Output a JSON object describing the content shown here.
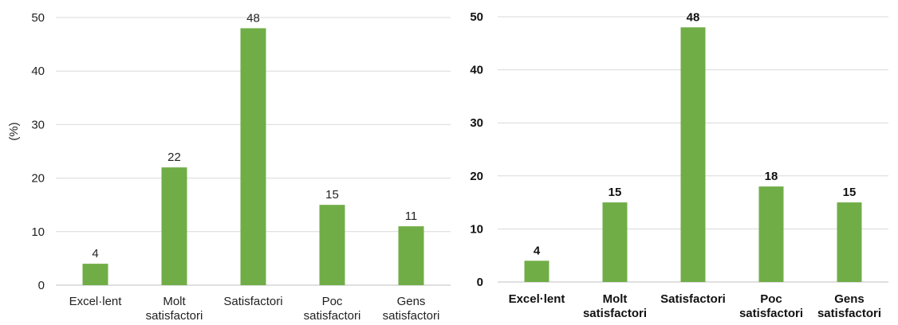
{
  "chart_data": [
    {
      "type": "bar",
      "categories": [
        [
          "Excel·lent"
        ],
        [
          "Molt",
          "satisfactori"
        ],
        [
          "Satisfactori"
        ],
        [
          "Poc",
          "satisfactori"
        ],
        [
          "Gens",
          "satisfactori"
        ]
      ],
      "values": [
        4,
        22,
        48,
        15,
        11
      ],
      "data_labels": [
        "4",
        "22",
        "48",
        "15",
        "11"
      ],
      "title": "",
      "xlabel": "",
      "ylabel": "(%)",
      "ylim": [
        0,
        50
      ],
      "yticks": [
        "0",
        "10",
        "20",
        "30",
        "40",
        "50"
      ],
      "grid": true,
      "legend": "none",
      "color": "#70ad47"
    },
    {
      "type": "bar",
      "categories": [
        [
          "Excel·lent"
        ],
        [
          "Molt",
          "satisfactori"
        ],
        [
          "Satisfactori"
        ],
        [
          "Poc",
          "satisfactori"
        ],
        [
          "Gens",
          "satisfactori"
        ]
      ],
      "values": [
        4,
        15,
        48,
        18,
        15
      ],
      "data_labels": [
        "4",
        "15",
        "48",
        "18",
        "15"
      ],
      "title": "",
      "xlabel": "",
      "ylabel": "",
      "ylim": [
        0,
        50
      ],
      "yticks": [
        "0",
        "10",
        "20",
        "30",
        "40",
        "50"
      ],
      "grid": true,
      "legend": "none",
      "color": "#70ad47"
    }
  ]
}
